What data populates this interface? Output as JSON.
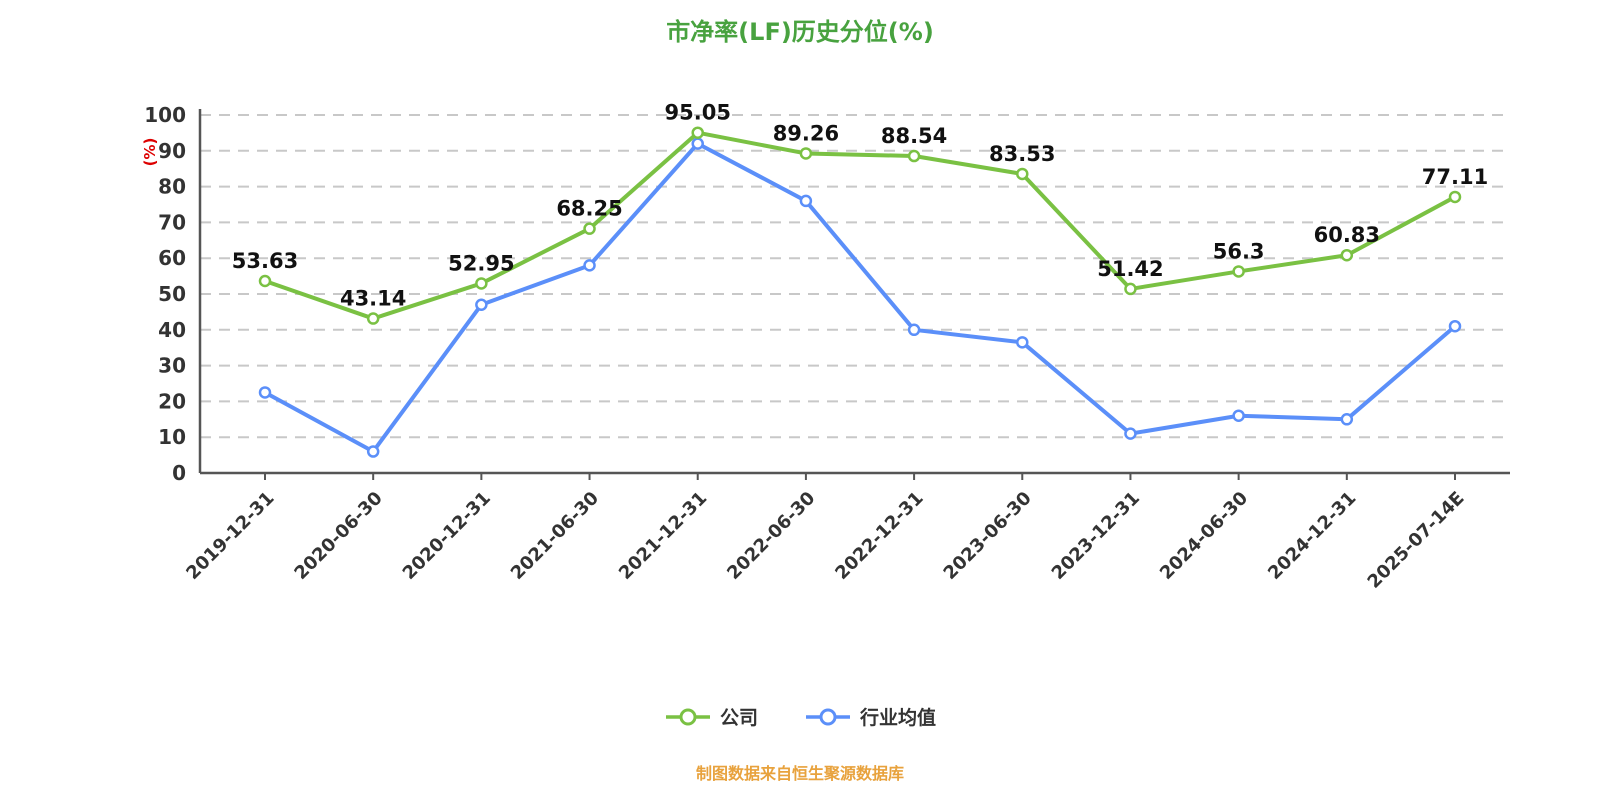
{
  "title": "市净率(LF)历史分位(%)",
  "footer": "制图数据来自恒生聚源数据库",
  "axis": {
    "y_unit_label": "(%)",
    "y_unit_color": "#dd0000",
    "axis_color": "#555555",
    "grid_color": "#c8c8c8",
    "tick_label_color": "#333333"
  },
  "legend": [
    {
      "label": "公司",
      "color": "#7ac143"
    },
    {
      "label": "行业均值",
      "color": "#5b8ff9"
    }
  ],
  "chart_data": {
    "type": "line",
    "title": "市净率(LF)历史分位(%)",
    "xlabel": "",
    "ylabel": "(%)",
    "ylim": [
      0,
      100
    ],
    "yticks": [
      0,
      10,
      20,
      30,
      40,
      50,
      60,
      70,
      80,
      90,
      100
    ],
    "grid": true,
    "legend_position": "bottom",
    "categories": [
      "2019-12-31",
      "2020-06-30",
      "2020-12-31",
      "2021-06-30",
      "2021-12-31",
      "2022-06-30",
      "2022-12-31",
      "2023-06-30",
      "2023-12-31",
      "2024-06-30",
      "2024-12-31",
      "2025-07-14E"
    ],
    "series": [
      {
        "name": "公司",
        "color": "#7ac143",
        "show_labels": true,
        "values": [
          53.63,
          43.14,
          52.95,
          68.25,
          95.05,
          89.26,
          88.54,
          83.53,
          51.42,
          56.3,
          60.83,
          77.11
        ]
      },
      {
        "name": "行业均值",
        "color": "#5b8ff9",
        "show_labels": false,
        "values": [
          22.5,
          6,
          47,
          58,
          92,
          76,
          40,
          36.5,
          11,
          16,
          15,
          41
        ]
      }
    ]
  }
}
